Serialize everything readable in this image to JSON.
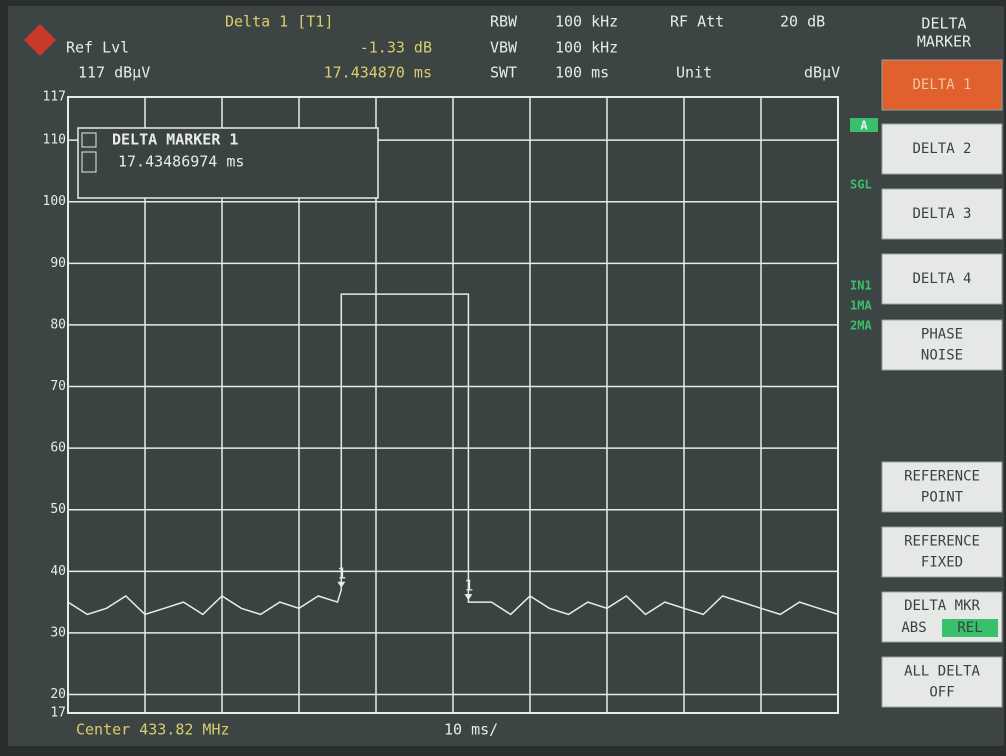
{
  "header": {
    "ref_label": "Ref Lvl",
    "ref_value": "117 dBµV",
    "marker_title": "Delta 1 [T1]",
    "marker_level": "-1.33 dB",
    "marker_time": "17.434870 ms",
    "rbw_label": "RBW",
    "rbw_value": "100 kHz",
    "vbw_label": "VBW",
    "vbw_value": "100 kHz",
    "swt_label": "SWT",
    "swt_value": "100 ms",
    "att_label": "RF Att",
    "att_value": "20 dB",
    "unit_label": "Unit",
    "unit_value": "dBµV"
  },
  "menu_title": [
    "DELTA",
    "MARKER"
  ],
  "softkeys": [
    [
      "DELTA 1"
    ],
    [
      "DELTA 2"
    ],
    [
      "DELTA 3"
    ],
    [
      "DELTA 4"
    ],
    [
      "PHASE",
      "NOISE"
    ],
    [
      "REFERENCE",
      "POINT"
    ],
    [
      "REFERENCE",
      "FIXED"
    ],
    [
      "DELTA MKR"
    ],
    [
      "ALL DELTA",
      "OFF"
    ]
  ],
  "toggle": [
    "ABS",
    "REL"
  ],
  "indicators": [
    "A",
    "SGL",
    "IN1",
    "1MA",
    "2MA"
  ],
  "info_box": {
    "title": "DELTA MARKER 1",
    "value": "17.43486974 ms"
  },
  "footer": {
    "center": "Center 433.82 MHz",
    "span": "10 ms/"
  },
  "chart_data": {
    "type": "line",
    "xlim": [
      0,
      100
    ],
    "ylim": [
      17,
      117
    ],
    "yticks": [
      117,
      110,
      100,
      90,
      80,
      70,
      60,
      50,
      40,
      30,
      20,
      17
    ],
    "grid": true,
    "color": "#e8ece0",
    "x": [
      0,
      2.5,
      5,
      7.5,
      10,
      12.5,
      15,
      17.5,
      20,
      22.5,
      25,
      27.5,
      30,
      32.5,
      35,
      35.5,
      35.5,
      52,
      52,
      55,
      57.5,
      60,
      62.5,
      65,
      67.5,
      70,
      72.5,
      75,
      77.5,
      80,
      82.5,
      85,
      87.5,
      90,
      92.5,
      95,
      97.5,
      100
    ],
    "values": [
      35,
      33,
      34,
      36,
      33,
      34,
      35,
      33,
      36,
      34,
      33,
      35,
      34,
      36,
      35,
      37,
      85,
      85,
      35,
      35,
      33,
      36,
      34,
      33,
      35,
      34,
      36,
      33,
      35,
      34,
      33,
      36,
      35,
      34,
      33,
      35,
      34,
      33
    ],
    "markers": [
      {
        "label": "1",
        "x": 35.5,
        "y": 37
      },
      {
        "label": "1",
        "x": 52,
        "y": 35
      }
    ]
  }
}
